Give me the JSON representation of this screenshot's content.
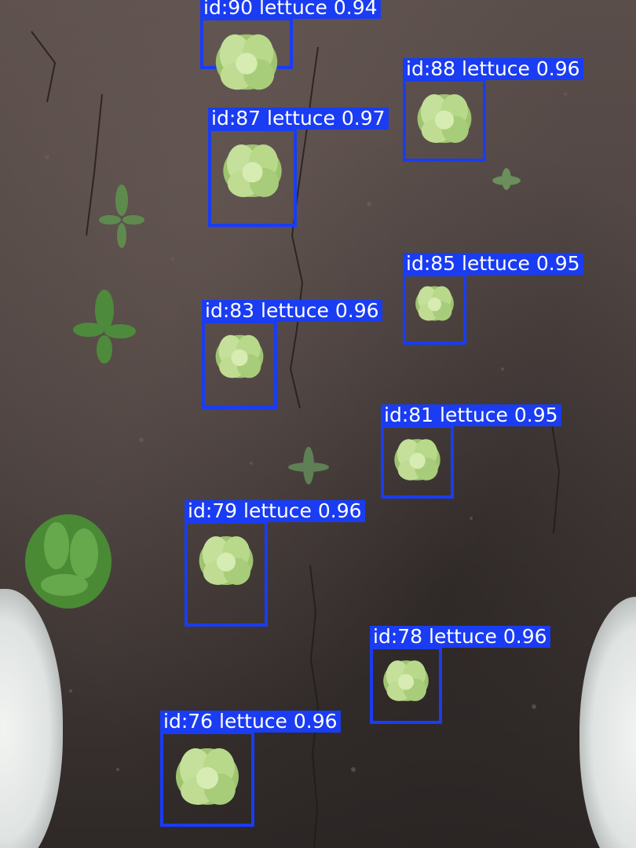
{
  "scene": {
    "description_colors": {
      "box": "#1a3cf2",
      "label_text": "#ffffff",
      "soil": "#4c4240",
      "lettuce": "#b8d98a",
      "weed": "#4e8a3c"
    }
  },
  "detections": [
    {
      "id_label": "id:90",
      "class": "lettuce",
      "score": "0.94"
    },
    {
      "id_label": "id:88",
      "class": "lettuce",
      "score": "0.96"
    },
    {
      "id_label": "id:87",
      "class": "lettuce",
      "score": "0.97"
    },
    {
      "id_label": "id:85",
      "class": "lettuce",
      "score": "0.95"
    },
    {
      "id_label": "id:83",
      "class": "lettuce",
      "score": "0.96"
    },
    {
      "id_label": "id:81",
      "class": "lettuce",
      "score": "0.95"
    },
    {
      "id_label": "id:79",
      "class": "lettuce",
      "score": "0.96"
    },
    {
      "id_label": "id:78",
      "class": "lettuce",
      "score": "0.96"
    },
    {
      "id_label": "id:76",
      "class": "lettuce",
      "score": "0.96"
    }
  ]
}
